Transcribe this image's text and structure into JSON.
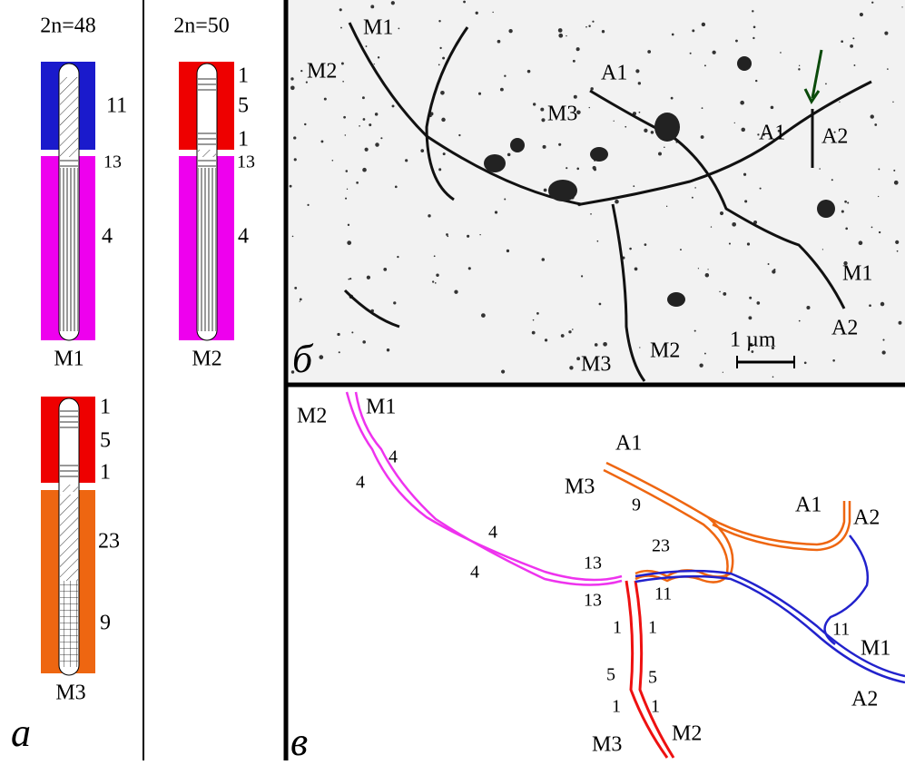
{
  "panel_a": {
    "label": "а",
    "karyotypes": [
      {
        "title": "2n=48"
      },
      {
        "title": "2n=50"
      }
    ],
    "chromosomes": [
      {
        "name": "M1",
        "labels": [
          "11",
          "13",
          "4"
        ]
      },
      {
        "name": "M2",
        "labels": [
          "1",
          "5",
          "1",
          "13",
          "4"
        ]
      },
      {
        "name": "M3",
        "labels": [
          "1",
          "5",
          "1",
          "23",
          "9"
        ]
      }
    ]
  },
  "panel_b": {
    "label": "б",
    "labels": [
      "M1",
      "M2",
      "A1",
      "M3",
      "A1",
      "A2",
      "M1",
      "A2",
      "M3",
      "M2"
    ],
    "scale": "1 µm"
  },
  "panel_c": {
    "label": "в",
    "labels": [
      "M2",
      "M1",
      "4",
      "4",
      "4",
      "4",
      "A1",
      "M3",
      "9",
      "A1",
      "A2",
      "13",
      "23",
      "13",
      "11",
      "11",
      "M1",
      "1",
      "1",
      "5",
      "5",
      "1",
      "1",
      "M3",
      "M2",
      "A2"
    ]
  }
}
